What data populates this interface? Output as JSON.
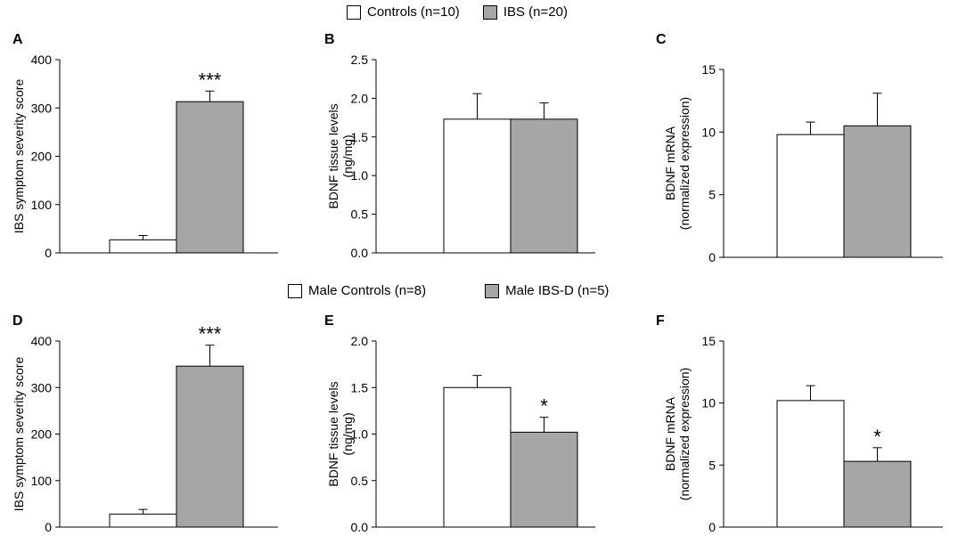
{
  "legends": [
    {
      "items": [
        {
          "label": "Controls (n=10)",
          "color": "#ffffff"
        },
        {
          "label": "IBS (n=20)",
          "color": "#a6a6a6"
        }
      ]
    },
    {
      "items": [
        {
          "label": "Male Controls (n=8)",
          "color": "#ffffff"
        },
        {
          "label": "Male IBS-D (n=5)",
          "color": "#a6a6a6"
        }
      ]
    }
  ],
  "chart_data": [
    {
      "type": "bar",
      "panel": "A",
      "ylabel": [
        "IBS symptom severity score"
      ],
      "ylim": [
        0,
        400
      ],
      "yticks": [
        0,
        100,
        200,
        300,
        400
      ],
      "decimals": 0,
      "categories": [
        "Controls (n=10)",
        "IBS (n=20)"
      ],
      "values": [
        27,
        313
      ],
      "errors": [
        9,
        22
      ],
      "colors": [
        "#ffffff",
        "#a6a6a6"
      ],
      "annotations": [
        "",
        "***"
      ]
    },
    {
      "type": "bar",
      "panel": "B",
      "ylabel": [
        "BDNF tissue levels",
        "(ng/mg)"
      ],
      "ylim": [
        0,
        2.5
      ],
      "yticks": [
        0,
        0.5,
        1.0,
        1.5,
        2.0,
        2.5
      ],
      "decimals": 1,
      "categories": [
        "Controls (n=10)",
        "IBS (n=20)"
      ],
      "values": [
        1.73,
        1.73
      ],
      "errors": [
        0.33,
        0.21
      ],
      "colors": [
        "#ffffff",
        "#a6a6a6"
      ],
      "annotations": [
        "",
        ""
      ]
    },
    {
      "type": "bar",
      "panel": "C",
      "ylabel": [
        "BDNF mRNA",
        "(normalized expression)"
      ],
      "ylim": [
        0,
        15
      ],
      "yticks": [
        0,
        5,
        10,
        15
      ],
      "decimals": 0,
      "categories": [
        "Controls (n=10)",
        "IBS (n=20)"
      ],
      "values": [
        9.8,
        10.5
      ],
      "errors": [
        1.0,
        2.6
      ],
      "colors": [
        "#ffffff",
        "#a6a6a6"
      ],
      "annotations": [
        "",
        ""
      ]
    },
    {
      "type": "bar",
      "panel": "D",
      "ylabel": [
        "IBS symptom severity score"
      ],
      "ylim": [
        0,
        400
      ],
      "yticks": [
        0,
        100,
        200,
        300,
        400
      ],
      "decimals": 0,
      "categories": [
        "Male Controls (n=8)",
        "Male IBS-D (n=5)"
      ],
      "values": [
        28,
        346
      ],
      "errors": [
        10,
        45
      ],
      "colors": [
        "#ffffff",
        "#a6a6a6"
      ],
      "annotations": [
        "",
        "***"
      ]
    },
    {
      "type": "bar",
      "panel": "E",
      "ylabel": [
        "BDNF tissue levels",
        "(ng/mg)"
      ],
      "ylim": [
        0,
        2.0
      ],
      "yticks": [
        0,
        0.5,
        1.0,
        1.5,
        2.0
      ],
      "decimals": 1,
      "categories": [
        "Male Controls (n=8)",
        "Male IBS-D (n=5)"
      ],
      "values": [
        1.5,
        1.02
      ],
      "errors": [
        0.13,
        0.16
      ],
      "colors": [
        "#ffffff",
        "#a6a6a6"
      ],
      "annotations": [
        "",
        "*"
      ]
    },
    {
      "type": "bar",
      "panel": "F",
      "ylabel": [
        "BDNF mRNA",
        "(normalized expression)"
      ],
      "ylim": [
        0,
        15
      ],
      "yticks": [
        0,
        5,
        10,
        15
      ],
      "decimals": 0,
      "categories": [
        "Male Controls (n=8)",
        "Male IBS-D (n=5)"
      ],
      "values": [
        10.2,
        5.3
      ],
      "errors": [
        1.2,
        1.1
      ],
      "colors": [
        "#ffffff",
        "#a6a6a6"
      ],
      "annotations": [
        "",
        "*"
      ]
    }
  ]
}
